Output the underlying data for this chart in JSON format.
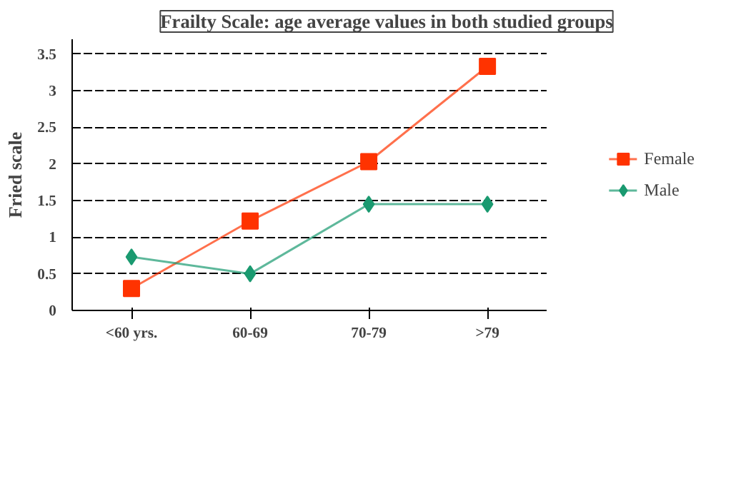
{
  "chart_data": {
    "type": "line",
    "title": "Frailty Scale: age average values in both studied groups",
    "ylabel": "Fried scale",
    "categories": [
      "<60 yrs.",
      "60-69",
      "70-79",
      ">79"
    ],
    "series": [
      {
        "name": "Female",
        "color": "#ff3300",
        "marker": "square",
        "values": [
          0.3,
          1.22,
          2.03,
          3.33
        ]
      },
      {
        "name": "Male",
        "color": "#1a9a70",
        "marker": "diamond",
        "values": [
          0.73,
          0.5,
          1.45,
          1.45
        ]
      }
    ],
    "ylim": [
      0,
      3.7
    ],
    "yticks": [
      0,
      0.5,
      1,
      1.5,
      2,
      2.5,
      3,
      3.5
    ],
    "grid": "y",
    "legend": "right"
  }
}
